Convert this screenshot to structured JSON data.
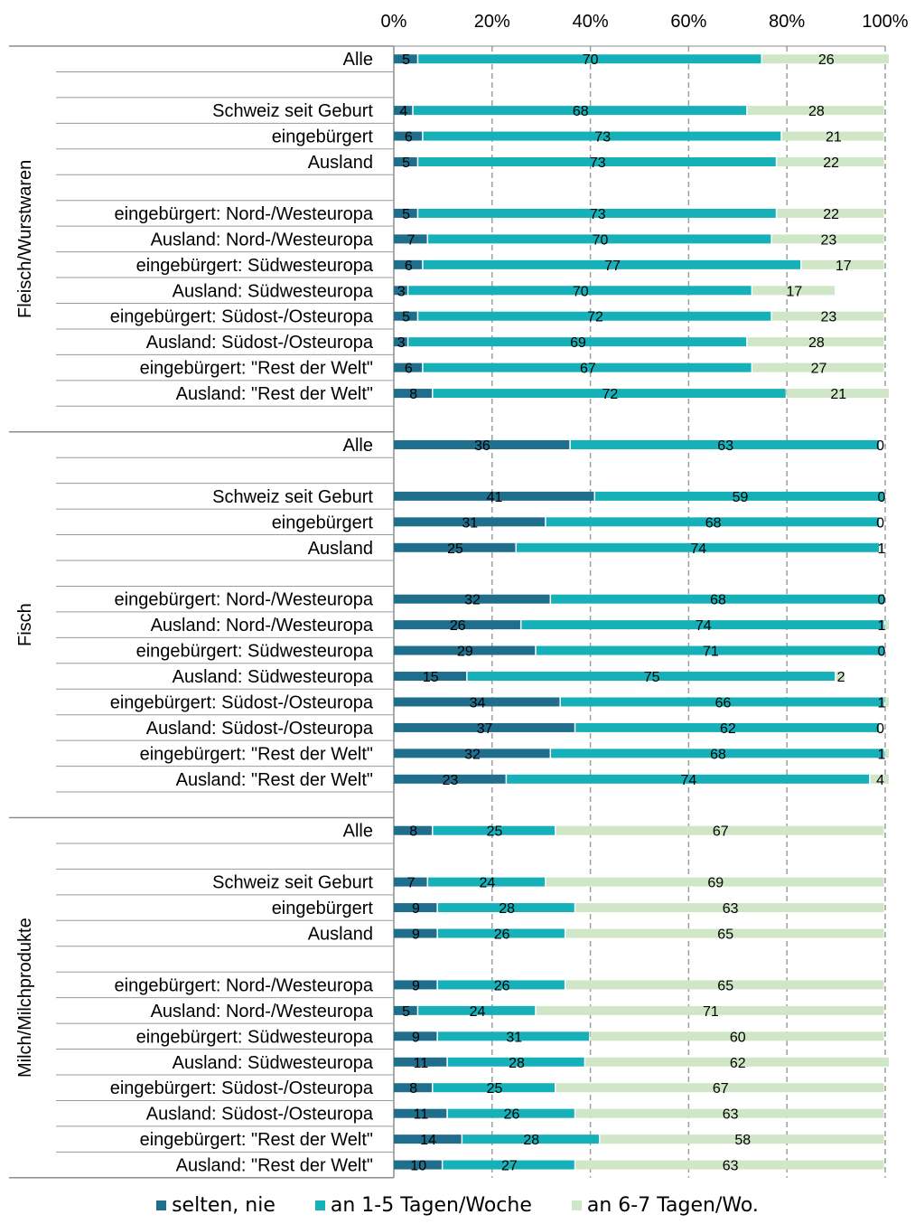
{
  "chart_data": {
    "type": "bar",
    "orientation": "horizontal",
    "stacked": "percent",
    "xlim": [
      0,
      100
    ],
    "x_ticks": [
      "0%",
      "20%",
      "40%",
      "60%",
      "80%",
      "100%"
    ],
    "grid": true,
    "legend_position": "bottom",
    "series": [
      {
        "name": "selten, nie",
        "color": "#1f6e8c"
      },
      {
        "name": "an 1-5 Tagen/Woche",
        "color": "#16b0b8"
      },
      {
        "name": "an 6-7 Tagen/Wo.",
        "color": "#cfe6c7"
      }
    ],
    "groups": [
      {
        "name": "Fleisch/Wurstwaren",
        "rows": [
          {
            "label": "Alle",
            "values": [
              5,
              70,
              26
            ]
          },
          null,
          {
            "label": "Schweiz seit Geburt",
            "values": [
              4,
              68,
              28
            ]
          },
          {
            "label": "eingebürgert",
            "values": [
              6,
              73,
              21
            ]
          },
          {
            "label": "Ausland",
            "values": [
              5,
              73,
              22
            ]
          },
          null,
          {
            "label": "eingebürgert: Nord-/Westeuropa",
            "values": [
              5,
              73,
              22
            ]
          },
          {
            "label": "Ausland: Nord-/Westeuropa",
            "values": [
              7,
              70,
              23
            ]
          },
          {
            "label": "eingebürgert: Südwesteuropa",
            "values": [
              6,
              77,
              17
            ]
          },
          {
            "label": "Ausland: Südwesteuropa",
            "values": [
              3,
              70,
              17
            ]
          },
          {
            "label": "eingebürgert: Südost-/Osteuropa",
            "values": [
              5,
              72,
              23
            ]
          },
          {
            "label": "Ausland: Südost-/Osteuropa",
            "values": [
              3,
              69,
              28
            ]
          },
          {
            "label": "eingebürgert: \"Rest der Welt\"",
            "values": [
              6,
              67,
              27
            ]
          },
          {
            "label": "Ausland: \"Rest der Welt\"",
            "values": [
              8,
              72,
              21
            ]
          },
          null
        ]
      },
      {
        "name": "Fisch",
        "rows": [
          {
            "label": "Alle",
            "values": [
              36,
              63,
              0
            ]
          },
          null,
          {
            "label": "Schweiz seit Geburt",
            "values": [
              41,
              59,
              0
            ]
          },
          {
            "label": "eingebürgert",
            "values": [
              31,
              68,
              0
            ]
          },
          {
            "label": "Ausland",
            "values": [
              25,
              74,
              1
            ]
          },
          null,
          {
            "label": "eingebürgert: Nord-/Westeuropa",
            "values": [
              32,
              68,
              0
            ]
          },
          {
            "label": "Ausland: Nord-/Westeuropa",
            "values": [
              26,
              74,
              1
            ]
          },
          {
            "label": "eingebürgert: Südwesteuropa",
            "values": [
              29,
              71,
              0
            ]
          },
          {
            "label": "Ausland: Südwesteuropa",
            "values": [
              15,
              75,
              2
            ]
          },
          {
            "label": "eingebürgert: Südost-/Osteuropa",
            "values": [
              34,
              66,
              1
            ]
          },
          {
            "label": "Ausland: Südost-/Osteuropa",
            "values": [
              37,
              62,
              0
            ]
          },
          {
            "label": "eingebürgert: \"Rest der Welt\"",
            "values": [
              32,
              68,
              1
            ]
          },
          {
            "label": "Ausland: \"Rest der Welt\"",
            "values": [
              23,
              74,
              4
            ]
          },
          null
        ]
      },
      {
        "name": "Milch/Milchprodukte",
        "rows": [
          {
            "label": "Alle",
            "values": [
              8,
              25,
              67
            ]
          },
          null,
          {
            "label": "Schweiz seit Geburt",
            "values": [
              7,
              24,
              69
            ]
          },
          {
            "label": "eingebürgert",
            "values": [
              9,
              28,
              63
            ]
          },
          {
            "label": "Ausland",
            "values": [
              9,
              26,
              65
            ]
          },
          null,
          {
            "label": "eingebürgert: Nord-/Westeuropa",
            "values": [
              9,
              26,
              65
            ]
          },
          {
            "label": "Ausland: Nord-/Westeuropa",
            "values": [
              5,
              24,
              71
            ]
          },
          {
            "label": "eingebürgert: Südwesteuropa",
            "values": [
              9,
              31,
              60
            ]
          },
          {
            "label": "Ausland: Südwesteuropa",
            "values": [
              11,
              28,
              62
            ]
          },
          {
            "label": "eingebürgert: Südost-/Osteuropa",
            "values": [
              8,
              25,
              67
            ]
          },
          {
            "label": "Ausland: Südost-/Osteuropa",
            "values": [
              11,
              26,
              63
            ]
          },
          {
            "label": "eingebürgert: \"Rest der Welt\"",
            "values": [
              14,
              28,
              58
            ]
          },
          {
            "label": "Ausland: \"Rest der Welt\"",
            "values": [
              10,
              27,
              63
            ]
          }
        ]
      }
    ]
  }
}
